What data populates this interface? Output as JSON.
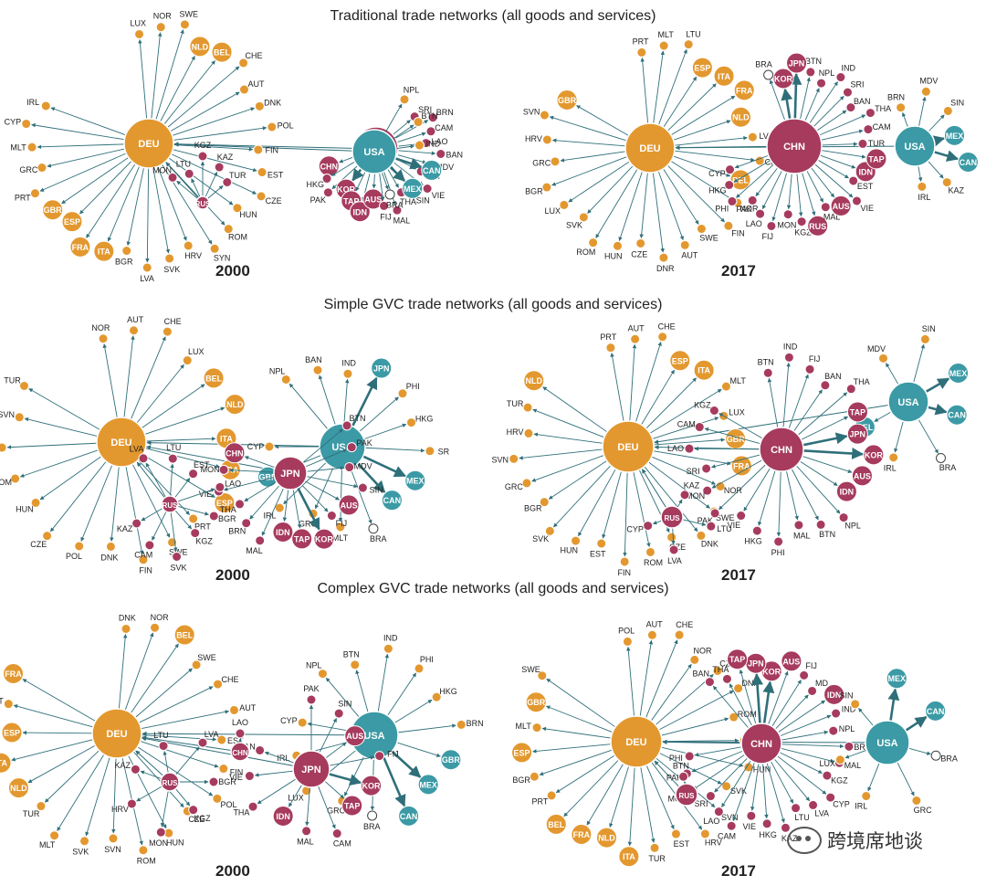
{
  "colors": {
    "orange": "#e3982f",
    "crimson": "#a63b5e",
    "teal": "#3b9aa5",
    "arrow": "#2f6f7a"
  },
  "sections": [
    {
      "title": "Traditional trade networks (all goods and services)",
      "years": [
        "2000",
        "2017"
      ],
      "networks": [
        {
          "hubs": [
            {
              "id": "DEU",
              "color": "orange",
              "label": "DEU",
              "leaves": [
                "LUX",
                "NOR",
                "SWE",
                "NLD",
                "BEL",
                "CHE",
                "AUT",
                "DNK",
                "POL",
                "FIN",
                "EST",
                "CZE",
                "HUN",
                "ROM",
                "SYN",
                "HRV",
                "SVK",
                "LVA",
                "BGR",
                "ITA",
                "FRA",
                "ESP",
                "GBR",
                "PRT",
                "GRC",
                "MLT",
                "CYP",
                "IRL"
              ]
            },
            {
              "id": "JPN",
              "color": "crimson",
              "label": "JPN",
              "leaves": [
                "CHN",
                "HKG",
                "PAK",
                "KOR",
                "TAP",
                "IDN",
                "AUS",
                "FIJ",
                "MAL",
                "THA",
                "SIN",
                "VIE",
                "PHI",
                "MDV",
                "BAN",
                "LAO",
                "CAM",
                "BRN",
                "SRI"
              ]
            },
            {
              "id": "USA",
              "color": "teal",
              "label": "USA",
              "leaves": [
                "BRA",
                "MEX",
                "CAN",
                "IND",
                "BTN",
                "NPL"
              ]
            },
            {
              "id": "RUS",
              "color": "crimson",
              "label": "RUS",
              "leaves": [
                "TUR",
                "KAZ",
                "KGZ",
                "LTU",
                "MON"
              ]
            }
          ]
        },
        {
          "hubs": [
            {
              "id": "DEU",
              "color": "orange",
              "label": "DEU",
              "leaves": [
                "PRT",
                "MLT",
                "LTU",
                "ESP",
                "ITA",
                "FRA",
                "NLD",
                "LVA",
                "CHE",
                "BEL",
                "NOR",
                "FIN",
                "SWE",
                "AUT",
                "DNR",
                "CZE",
                "HUN",
                "ROM",
                "SVK",
                "LUX",
                "BGR",
                "GRC",
                "HRV",
                "SVN",
                "GBR"
              ]
            },
            {
              "id": "CHN",
              "color": "crimson",
              "label": "CHN",
              "leaves": [
                "CYP",
                "HKG",
                "PHI",
                "PAK",
                "LAO",
                "FIJ",
                "MON",
                "KGZ",
                "RUS",
                "MAL",
                "AUS",
                "VIE",
                "EST",
                "IDN",
                "TAP",
                "TUR",
                "CAM",
                "THA",
                "BAN",
                "SRI",
                "IND",
                "NPL",
                "BTN",
                "JPN",
                "KOR",
                "BRA"
              ]
            },
            {
              "id": "USA",
              "color": "teal",
              "label": "USA",
              "leaves": [
                "IRL",
                "KAZ",
                "CAN",
                "MEX",
                "SIN",
                "MDV",
                "BRN"
              ]
            }
          ]
        }
      ]
    },
    {
      "title": "Simple GVC trade networks (all goods and services)",
      "years": [
        "2000",
        "2017"
      ],
      "networks": [
        {
          "hubs": [
            {
              "id": "DEU",
              "color": "orange",
              "label": "DEU",
              "leaves": [
                "NOR",
                "AUT",
                "CHE",
                "LUX",
                "BEL",
                "NLD",
                "ITA",
                "FRA",
                "ESP",
                "PRT",
                "SWE",
                "FIN",
                "DNK",
                "POL",
                "CZE",
                "HUN",
                "ROM",
                "HRV",
                "SVN",
                "TUR"
              ]
            },
            {
              "id": "USA",
              "color": "teal",
              "label": "USA",
              "leaves": [
                "CYP",
                "GBR",
                "IRL",
                "GRC",
                "MLT",
                "BRA",
                "CAN",
                "MEX",
                "SR",
                "HKG",
                "PHI",
                "JPN",
                "IND",
                "BAN",
                "NPL"
              ]
            },
            {
              "id": "JPN",
              "color": "crimson",
              "label": "JPN",
              "leaves": [
                "CHN",
                "MON",
                "VIE",
                "THA",
                "BRN",
                "MAL",
                "IDN",
                "TAP",
                "KOR",
                "FIJ",
                "AUS",
                "SIN",
                "MDV",
                "PAK",
                "BTN"
              ]
            },
            {
              "id": "RUS",
              "color": "crimson",
              "label": "RUS",
              "leaves": [
                "KAZ",
                "CAM",
                "SVK",
                "KGZ",
                "BGR",
                "LAO",
                "EST",
                "LTU",
                "LVA"
              ]
            }
          ]
        },
        {
          "hubs": [
            {
              "id": "DEU",
              "color": "orange",
              "label": "DEU",
              "leaves": [
                "PRT",
                "AUT",
                "CHE",
                "ESP",
                "ITA",
                "MLT",
                "LUX",
                "GBR",
                "FRA",
                "NOR",
                "SWE",
                "DNK",
                "CZE",
                "ROM",
                "FIN",
                "EST",
                "HUN",
                "SVK",
                "BGR",
                "GRC",
                "SVN",
                "HRV",
                "TUR",
                "NLD"
              ]
            },
            {
              "id": "USA",
              "color": "teal",
              "label": "USA",
              "leaves": [
                "BEL",
                "IRL",
                "BRA",
                "CAN",
                "MEX",
                "SIN",
                "MDV"
              ]
            },
            {
              "id": "CHN",
              "color": "crimson",
              "label": "CHN",
              "leaves": [
                "KGZ",
                "CAM",
                "LAO",
                "SRI",
                "MON",
                "PAK",
                "VIE",
                "HKG",
                "PHI",
                "MAL",
                "BTN",
                "NPL",
                "IDN",
                "AUS",
                "KOR",
                "JPN",
                "TAP",
                "THA",
                "BAN",
                "FIJ",
                "IND",
                "BTN"
              ]
            },
            {
              "id": "RUS",
              "color": "crimson",
              "label": "RUS",
              "leaves": [
                "CYP",
                "LVA",
                "LTU",
                "KAZ"
              ]
            }
          ]
        }
      ]
    },
    {
      "title": "Complex GVC trade networks (all goods and services)",
      "years": [
        "2000",
        "2017"
      ],
      "networks": [
        {
          "hubs": [
            {
              "id": "DEU",
              "color": "orange",
              "label": "DEU",
              "leaves": [
                "DNK",
                "NOR",
                "BEL",
                "SWE",
                "CHE",
                "AUT",
                "EST",
                "FIN",
                "POL",
                "CZE",
                "HUN",
                "ROM",
                "SVN",
                "SVK",
                "MLT",
                "TUR",
                "NLD",
                "ITA",
                "ESP",
                "PRT",
                "FRA"
              ]
            },
            {
              "id": "USA",
              "color": "teal",
              "label": "USA",
              "leaves": [
                "CYP",
                "IRL",
                "LUX",
                "GRC",
                "BRA",
                "CAN",
                "MEX",
                "GBR",
                "BRN",
                "HKG",
                "PHI",
                "IND",
                "BTN",
                "NPL"
              ]
            },
            {
              "id": "JPN",
              "color": "crimson",
              "label": "JPN",
              "leaves": [
                "BAN",
                "VIE",
                "THA",
                "IDN",
                "MAL",
                "CAM",
                "TAP",
                "KOR",
                "FIJ",
                "AUS",
                "SIN",
                "PAK"
              ]
            },
            {
              "id": "RUS",
              "color": "crimson",
              "label": "RUS",
              "leaves": [
                "KAZ",
                "HRV",
                "MON",
                "KGZ",
                "BGR",
                "LVA",
                "LTU"
              ]
            },
            {
              "id": "CHN",
              "color": "crimson",
              "label": "CHN",
              "leaves": [
                "LAO"
              ]
            }
          ]
        },
        {
          "hubs": [
            {
              "id": "DEU",
              "color": "orange",
              "label": "DEU",
              "leaves": [
                "POL",
                "AUT",
                "CHE",
                "NOR",
                "CZE",
                "DNK",
                "ROM",
                "FIN",
                "HUN",
                "SVK",
                "SVN",
                "HRV",
                "EST",
                "TUR",
                "ITA",
                "NLD",
                "FRA",
                "BEL",
                "PRT",
                "BGR",
                "ESP",
                "MLT",
                "GBR",
                "SWE"
              ]
            },
            {
              "id": "CHN",
              "color": "crimson",
              "label": "CHN",
              "leaves": [
                "PHI",
                "PAK",
                "MON",
                "SRI",
                "LAO",
                "CAM",
                "VIE",
                "HKG",
                "KAZ",
                "LTU",
                "LVA",
                "CYP",
                "KGZ",
                "MAL",
                "BRN",
                "NPL",
                "IND",
                "IDN",
                "MD",
                "FIJ",
                "AUS",
                "KOR",
                "JPN",
                "TAP",
                "THA",
                "BAN"
              ]
            },
            {
              "id": "USA",
              "color": "teal",
              "label": "USA",
              "leaves": [
                "LUX",
                "IRL",
                "GRC",
                "BRA",
                "CAN",
                "MEX",
                "SIN"
              ]
            },
            {
              "id": "RUS",
              "color": "crimson",
              "label": "RUS",
              "leaves": [
                "BTN"
              ]
            }
          ]
        }
      ]
    }
  ],
  "watermark": "跨境席地谈"
}
